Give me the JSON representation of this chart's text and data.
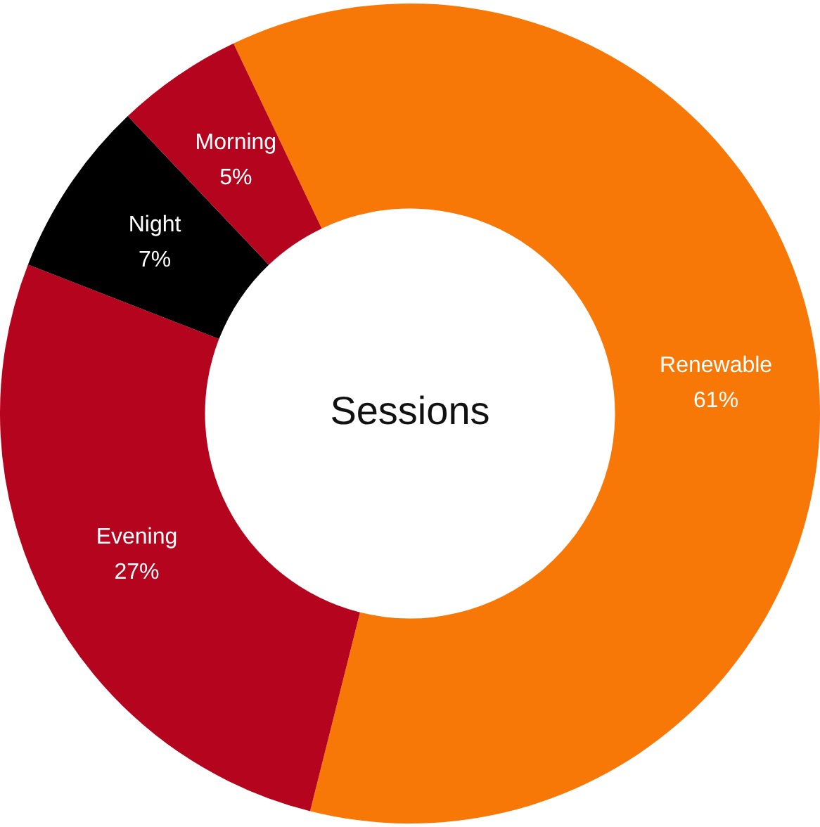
{
  "chart_data": {
    "type": "donut",
    "title": "Sessions",
    "categories": [
      "Renewable",
      "Evening",
      "Night",
      "Morning"
    ],
    "values": [
      61,
      27,
      7,
      5
    ],
    "colors": [
      "#f77807",
      "#b5051e",
      "#000000",
      "#b5051e"
    ],
    "value_labels": [
      "61%",
      "27%",
      "7%",
      "5%"
    ],
    "legend": false
  }
}
